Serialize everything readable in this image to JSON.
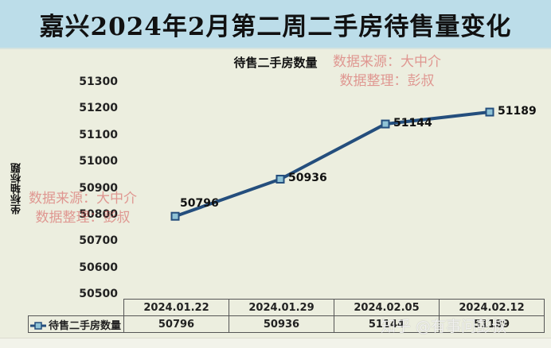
{
  "header": {
    "title": "嘉兴2024年2月第二周二手房待售量变化"
  },
  "watermarks": {
    "source_line": "数据来源：大中介",
    "author_line": "数据整理：彭叔",
    "platform": "知乎 @有事问彭叔"
  },
  "chart_data": {
    "type": "line",
    "title": "待售二手房数量",
    "xlabel": "",
    "ylabel": "坐标轴标题",
    "categories": [
      "2024.01.22",
      "2024.01.29",
      "2024.02.05",
      "2024.02.12"
    ],
    "series": [
      {
        "name": "待售二手房数量",
        "values": [
          50796,
          50936,
          51144,
          51189
        ],
        "color": "#244e7d",
        "marker": "square",
        "marker_fill": "#8fc3d6"
      }
    ],
    "yticks": [
      51300,
      51200,
      51100,
      51000,
      50900,
      50800,
      50700,
      50600,
      50500
    ],
    "ylim": [
      50500,
      51300
    ],
    "grid": false,
    "data_labels": true,
    "legend_position": "data-table",
    "data_table": true
  },
  "colors": {
    "header_bg": "#bcdde9",
    "plot_bg": "#eceedf",
    "line": "#244e7d",
    "marker_fill": "#8fc3d6",
    "watermark_red": "#d65050"
  }
}
